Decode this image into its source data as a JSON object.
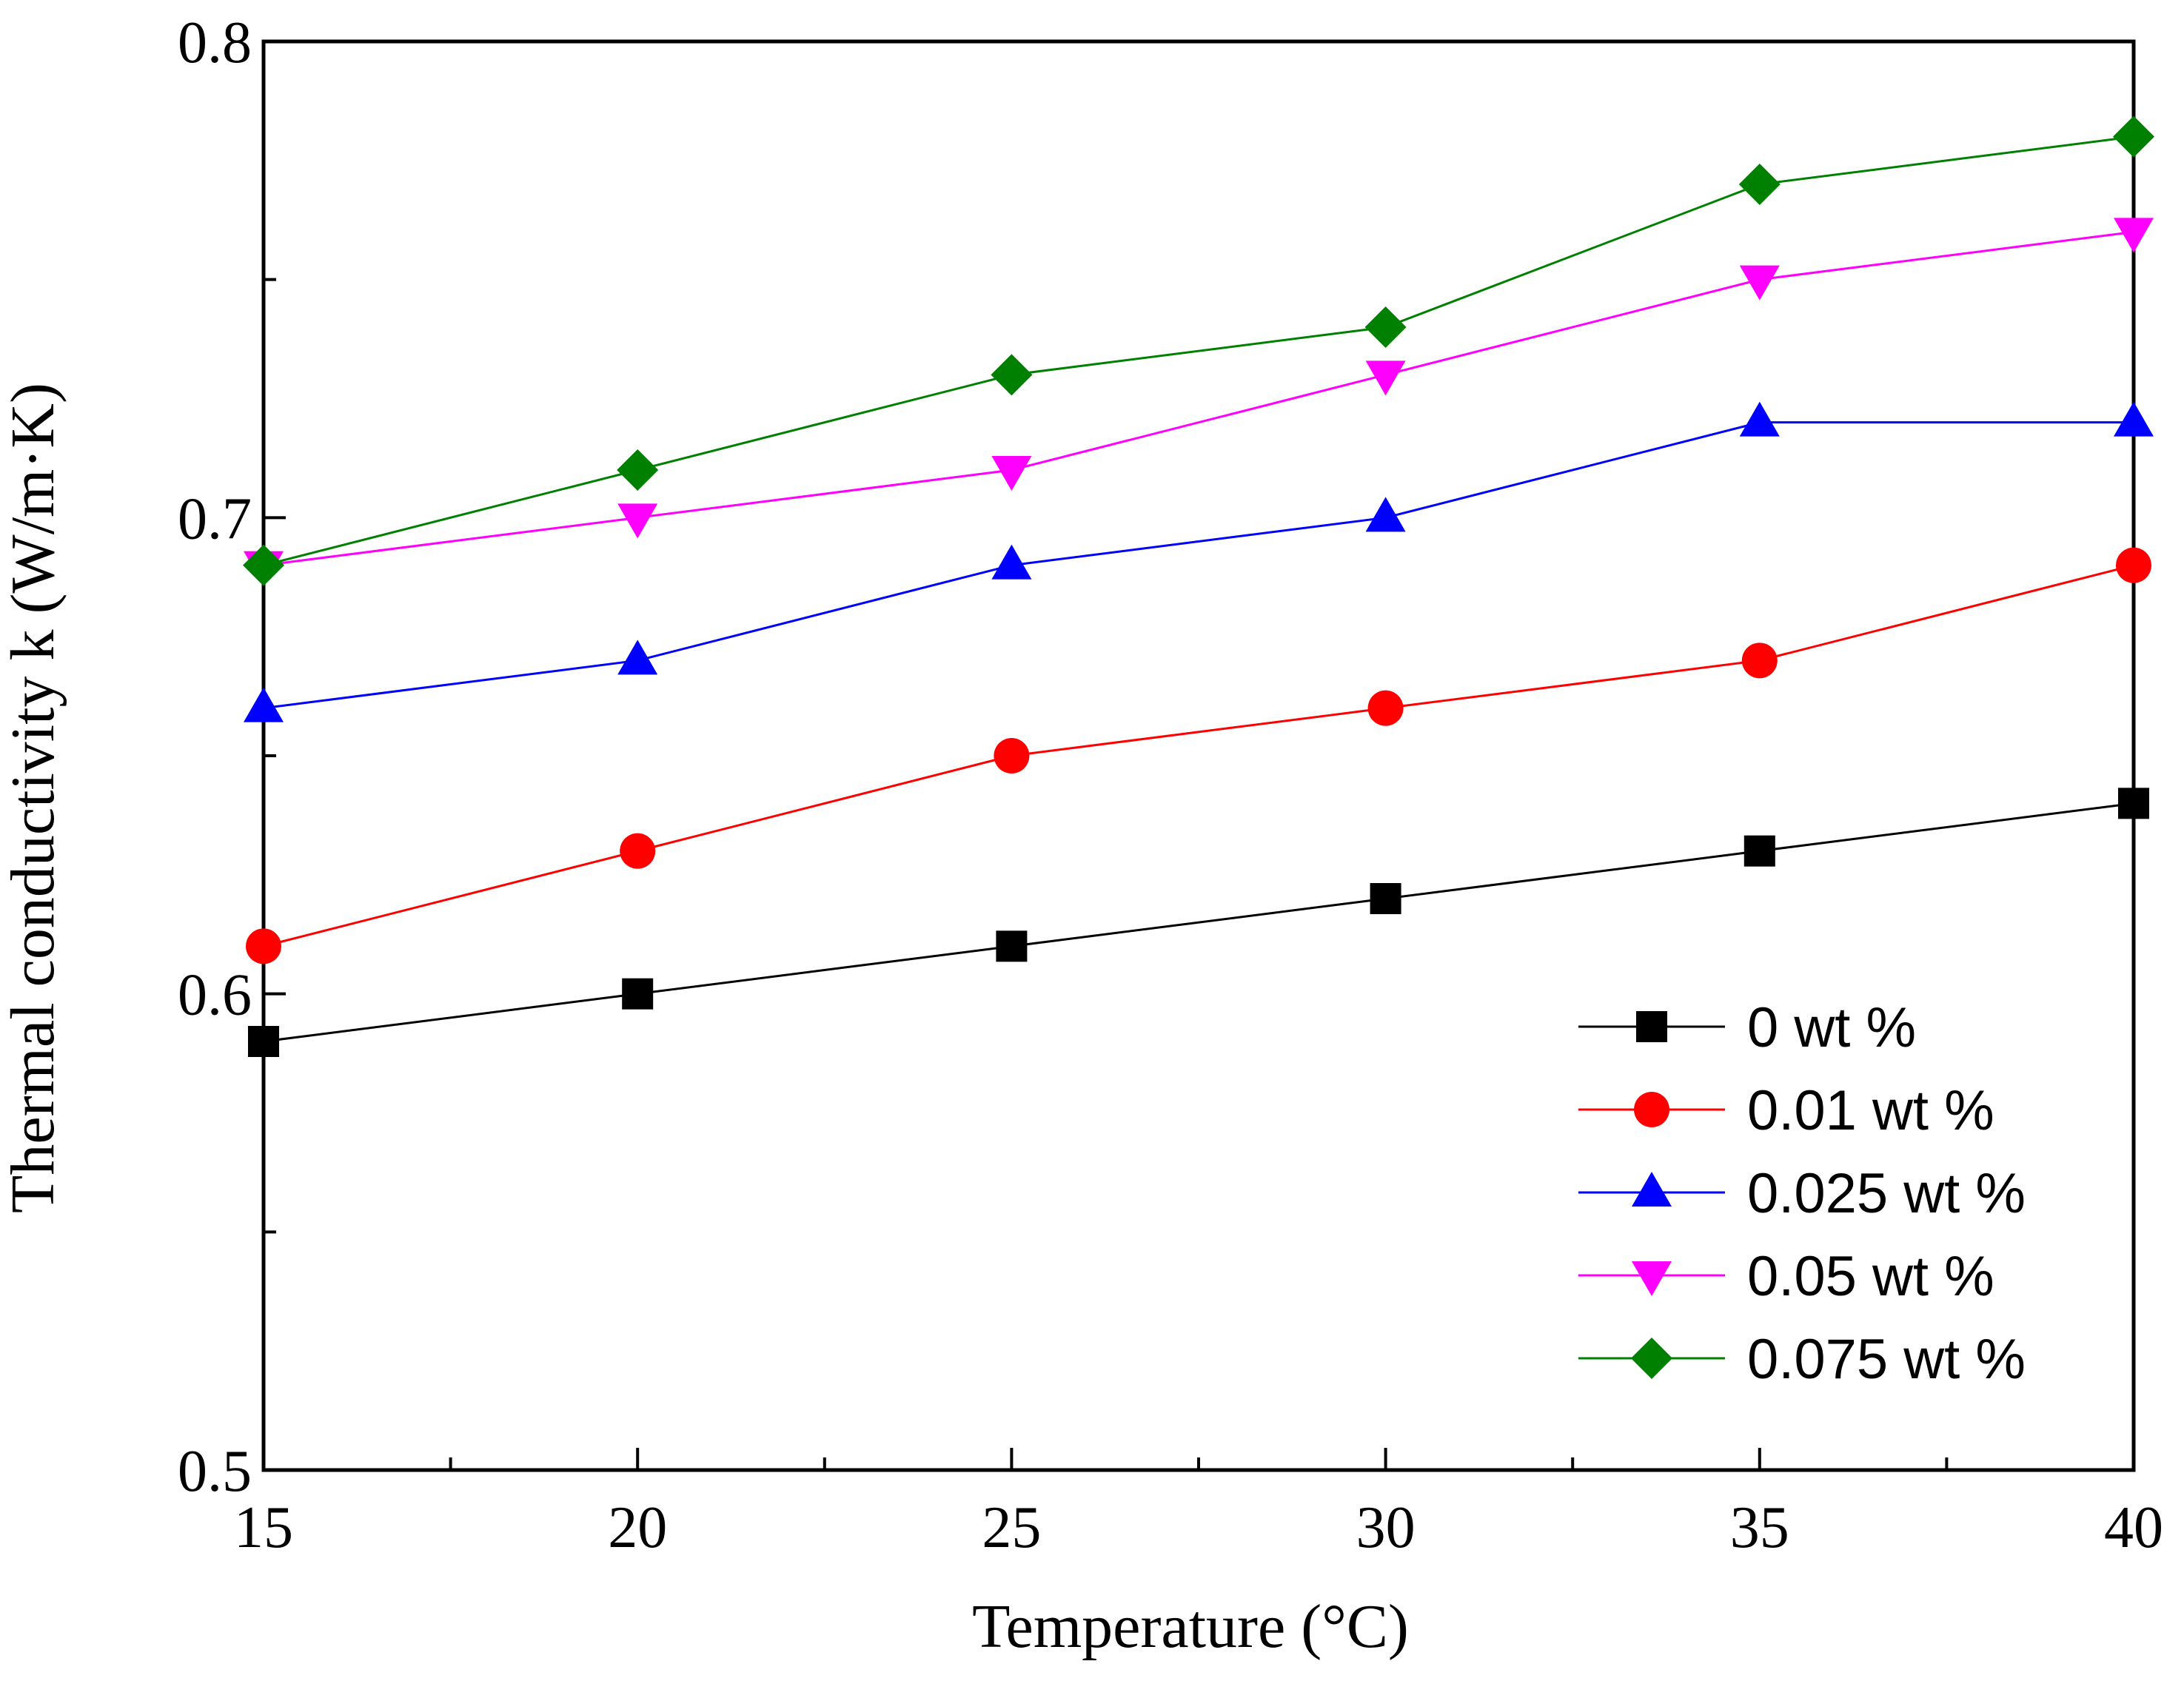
{
  "chart_data": {
    "type": "line",
    "title": "",
    "xlabel": "Temperature (°C)",
    "ylabel": "Thermal conductivity k (W/m·K)",
    "xlim": [
      15,
      40
    ],
    "ylim": [
      0.5,
      0.8
    ],
    "x_ticks": [
      15,
      20,
      25,
      30,
      35,
      40
    ],
    "x_tick_labels": [
      "15",
      "20",
      "25",
      "30",
      "35",
      "40"
    ],
    "x_minor_ticks": [
      17.5,
      22.5,
      27.5,
      32.5,
      37.5
    ],
    "y_ticks": [
      0.5,
      0.6,
      0.7,
      0.8
    ],
    "y_tick_labels": [
      "0.5",
      "0.6",
      "0.7",
      "0.8"
    ],
    "y_minor_ticks": [
      0.55,
      0.65,
      0.75
    ],
    "grid": false,
    "legend_position": "bottom-right",
    "x": [
      15,
      20,
      25,
      30,
      35,
      40
    ],
    "series": [
      {
        "name": "0 wt %",
        "color": "#000000",
        "marker": "square",
        "values": [
          0.59,
          0.6,
          0.61,
          0.62,
          0.63,
          0.64
        ]
      },
      {
        "name": "0.01 wt %",
        "color": "#ff0000",
        "marker": "circle",
        "values": [
          0.61,
          0.63,
          0.65,
          0.66,
          0.67,
          0.69
        ]
      },
      {
        "name": "0.025 wt %",
        "color": "#0000ff",
        "marker": "triangle-up",
        "values": [
          0.66,
          0.67,
          0.69,
          0.7,
          0.72,
          0.72
        ]
      },
      {
        "name": "0.05 wt %",
        "color": "#ff00ff",
        "marker": "triangle-down",
        "values": [
          0.69,
          0.7,
          0.71,
          0.73,
          0.75,
          0.76
        ]
      },
      {
        "name": "0.075 wt %",
        "color": "#008000",
        "marker": "diamond",
        "values": [
          0.69,
          0.71,
          0.73,
          0.74,
          0.77,
          0.78
        ]
      }
    ]
  }
}
